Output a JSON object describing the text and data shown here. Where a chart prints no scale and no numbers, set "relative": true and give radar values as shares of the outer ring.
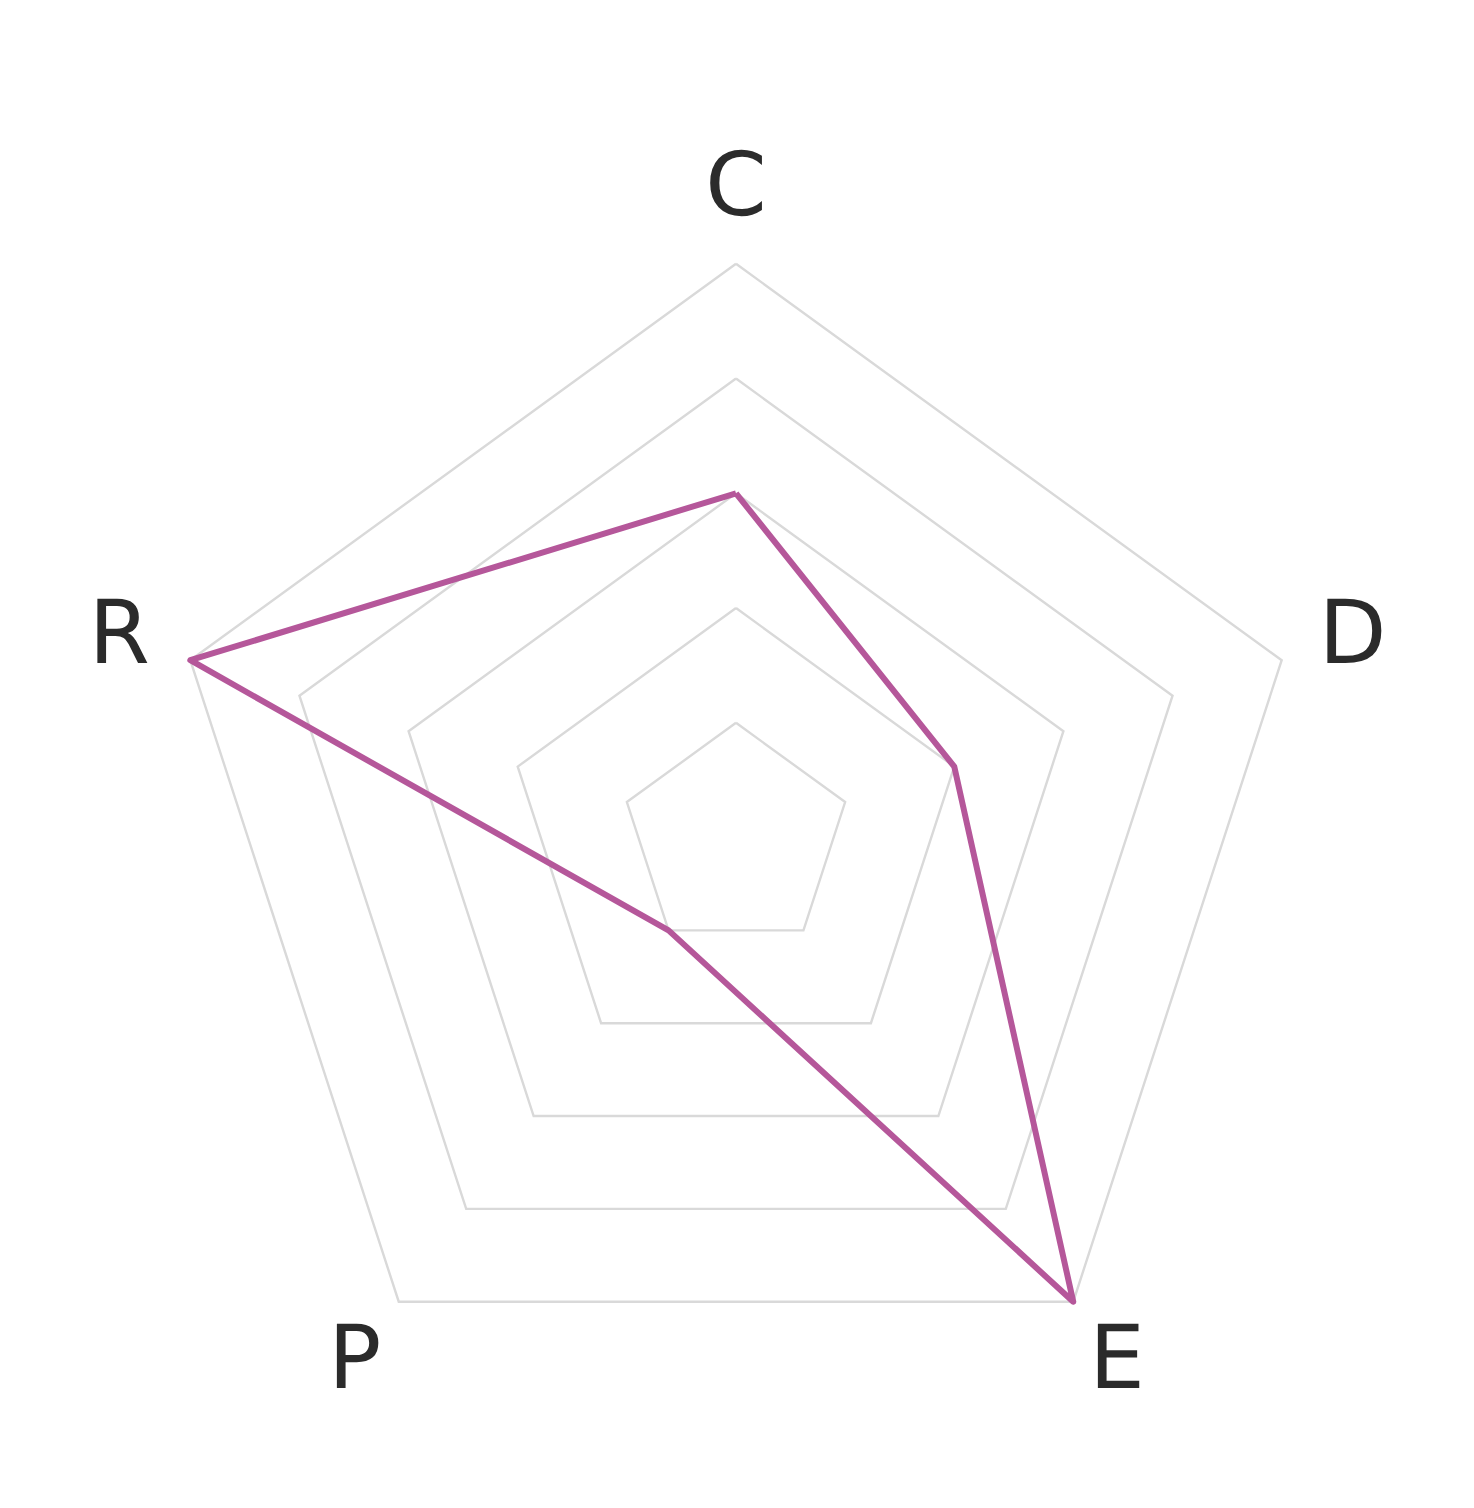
{
  "chart_data": {
    "type": "radar",
    "relative": true,
    "grid": true,
    "categories": [
      "C",
      "D",
      "E",
      "P",
      "R"
    ],
    "series": [
      {
        "color": "#b5579a",
        "values": [
          0.6,
          0.4,
          1,
          0.2,
          1
        ]
      }
    ]
  }
}
